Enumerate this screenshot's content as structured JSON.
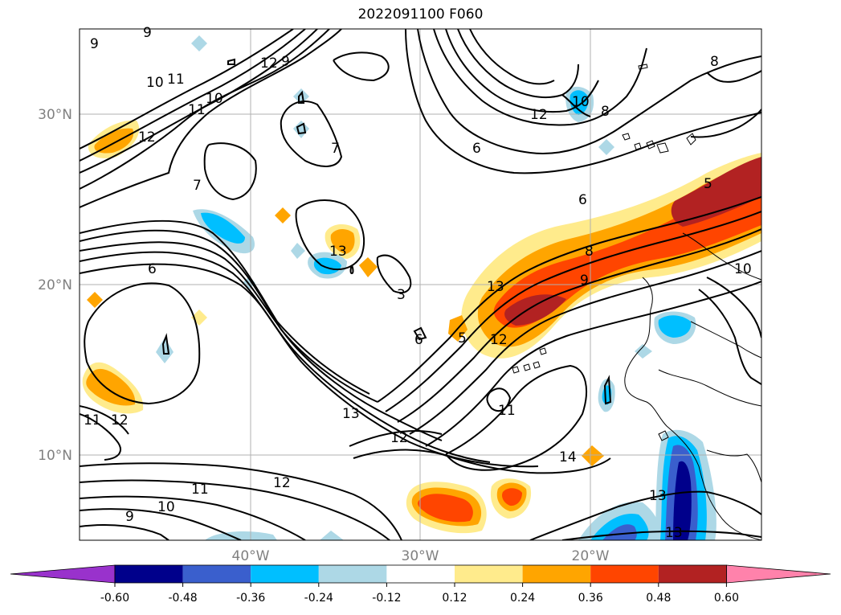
{
  "title": "2022091100 F060",
  "axes": {
    "lat_ticks": [
      "30°N",
      "20°N",
      "10°N"
    ],
    "lon_ticks": [
      "40°W",
      "30°W",
      "20°W"
    ],
    "grid": true
  },
  "contour_labels": [
    "9",
    "9",
    "10",
    "11",
    "11",
    "10",
    "12",
    "12",
    "9",
    "7",
    "7",
    "6",
    "6",
    "13",
    "3",
    "6",
    "5",
    "8",
    "9",
    "13",
    "12",
    "11",
    "14",
    "13",
    "13",
    "12",
    "11",
    "12",
    "10",
    "9",
    "12",
    "11",
    "10",
    "8",
    "6",
    "8",
    "5",
    "10",
    "13",
    "12"
  ],
  "colorbar": {
    "ticks": [
      "-0.60",
      "-0.48",
      "-0.36",
      "-0.24",
      "-0.12",
      "0.12",
      "0.24",
      "0.36",
      "0.48",
      "0.60"
    ],
    "colors": [
      "#9932cc",
      "#00008b",
      "#3a5fcd",
      "#00bfff",
      "#add8e6",
      "#ffffff",
      "#ffeb8c",
      "#ffa500",
      "#ff4500",
      "#b22222",
      "#ff82ab"
    ],
    "extend": "both"
  }
}
